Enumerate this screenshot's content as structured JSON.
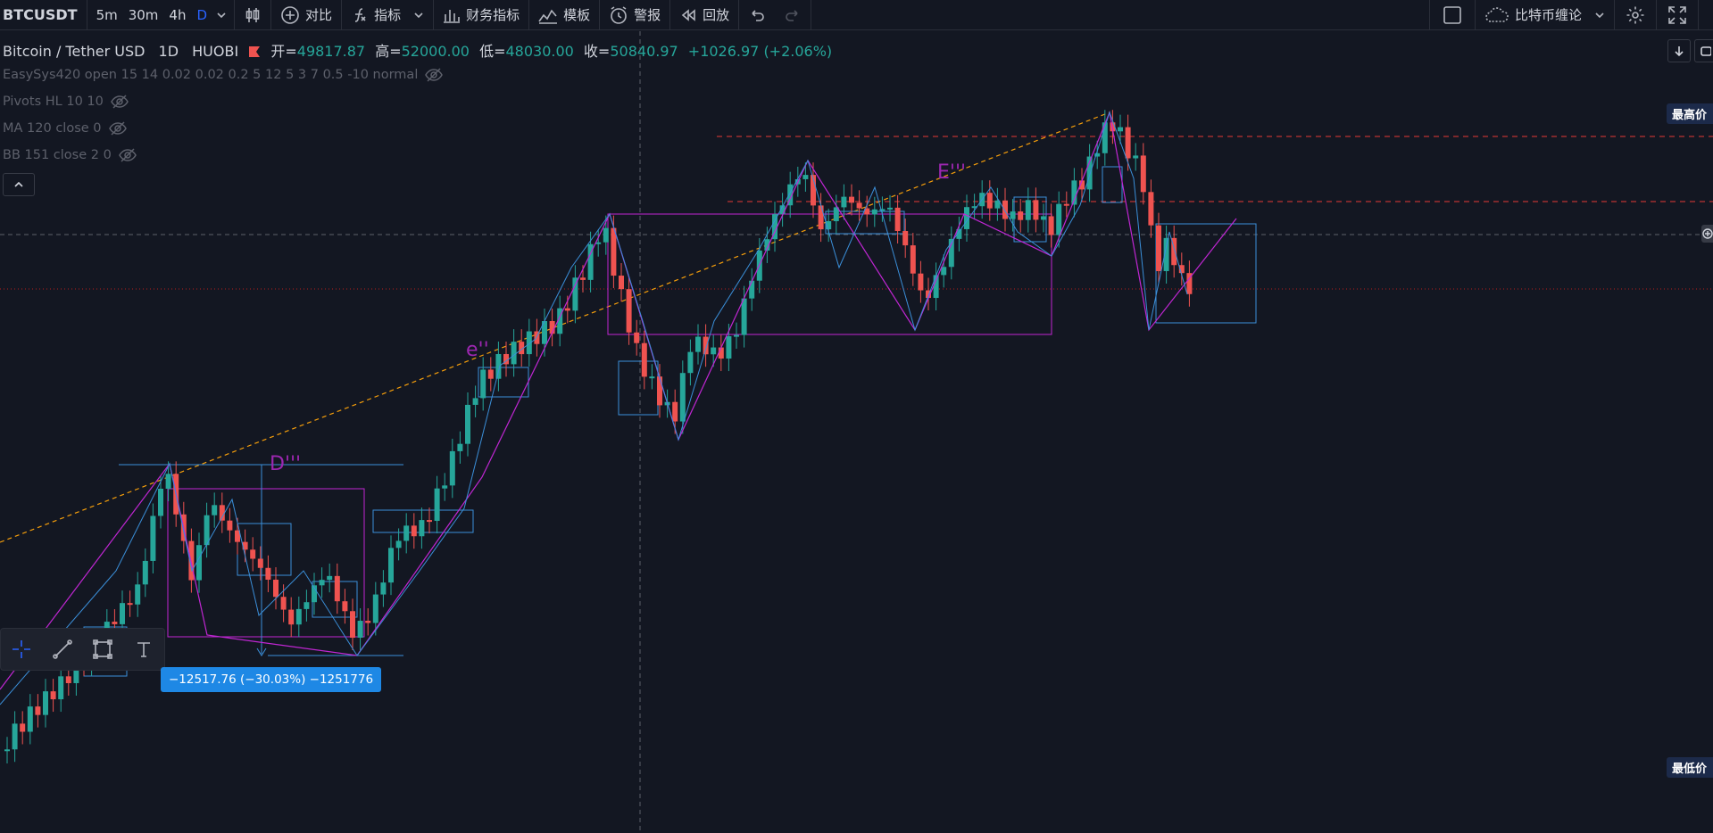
{
  "toolbar": {
    "symbol": "BTCUSDT",
    "intervals": [
      "5m",
      "30m",
      "4h",
      "D"
    ],
    "active_interval": "D",
    "compare_label": "对比",
    "indicators_label": "指标",
    "financials_label": "财务指标",
    "templates_label": "模板",
    "alert_label": "警报",
    "replay_label": "回放",
    "layout_name": "比特币缠论"
  },
  "legend": {
    "symbol_name": "Bitcoin / Tether USD",
    "interval": "1D",
    "exchange": "HUOBI",
    "open_label": "开=",
    "open": "49817.87",
    "high_label": "高=",
    "high": "52000.00",
    "low_label": "低=",
    "low": "48030.00",
    "close_label": "收=",
    "close": "50840.97",
    "change": "+1026.97 (+2.06%)"
  },
  "studies": [
    "EasySys420 open 15 14 0.02 0.02 0.2 5 12 5 3 7 0.5 -10 normal",
    "Pivots HL 10 10",
    "MA 120 close 0",
    "BB 151 close 2 0"
  ],
  "annotations": {
    "D": "D'''",
    "E": "E'''",
    "e": "e''"
  },
  "measure": {
    "label": "−12517.76 (−30.03%) −1251776"
  },
  "price_tags": {
    "highest": "最高价",
    "lowest": "最低价"
  },
  "colors": {
    "background": "#131722",
    "up": "#26a69a",
    "down": "#ef5350",
    "zigzag": "#c026d3",
    "boxes": "#3b8fd9",
    "trendline": "#f59e0b",
    "resistance": "#e53935"
  }
}
